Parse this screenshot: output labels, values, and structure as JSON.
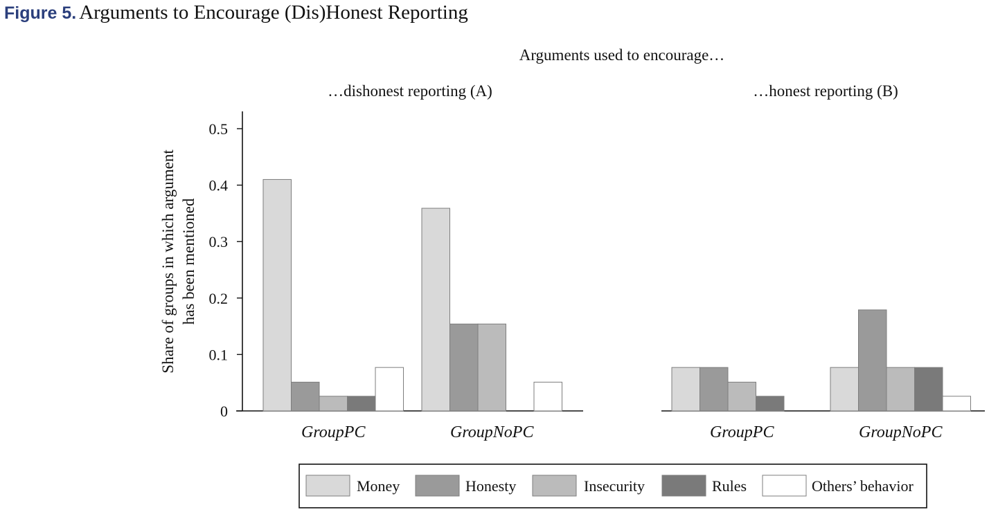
{
  "figure": {
    "label": "Figure 5.",
    "title": "Arguments to Encourage (Dis)Honest Reporting"
  },
  "chart_data": {
    "type": "bar",
    "supertitle": "Arguments used to encourage…",
    "ylabel_line1": "Share of groups in which argument",
    "ylabel_line2": "has been mentioned",
    "ylim": [
      0,
      0.5
    ],
    "yticks": [
      "0",
      "0.1",
      "0.2",
      "0.3",
      "0.4",
      "0.5"
    ],
    "legend_position": "bottom",
    "series": [
      {
        "name": "Money",
        "color": "#d9d9d9"
      },
      {
        "name": "Honesty",
        "color": "#9a9a9a"
      },
      {
        "name": "Insecurity",
        "color": "#bbbbbb"
      },
      {
        "name": "Rules",
        "color": "#7a7a7a"
      },
      {
        "name": "Others’ behavior",
        "color": "#ffffff"
      }
    ],
    "panels": [
      {
        "title": "…dishonest reporting (A)",
        "categories": [
          "GroupPC",
          "GroupNoPC"
        ],
        "values": [
          [
            0.41,
            0.051,
            0.026,
            0.026,
            0.077
          ],
          [
            0.359,
            0.154,
            0.154,
            0.0,
            0.051
          ]
        ]
      },
      {
        "title": "…honest reporting (B)",
        "categories": [
          "GroupPC",
          "GroupNoPC"
        ],
        "values": [
          [
            0.077,
            0.077,
            0.051,
            0.026,
            0.0
          ],
          [
            0.077,
            0.179,
            0.077,
            0.077,
            0.026
          ]
        ]
      }
    ]
  }
}
